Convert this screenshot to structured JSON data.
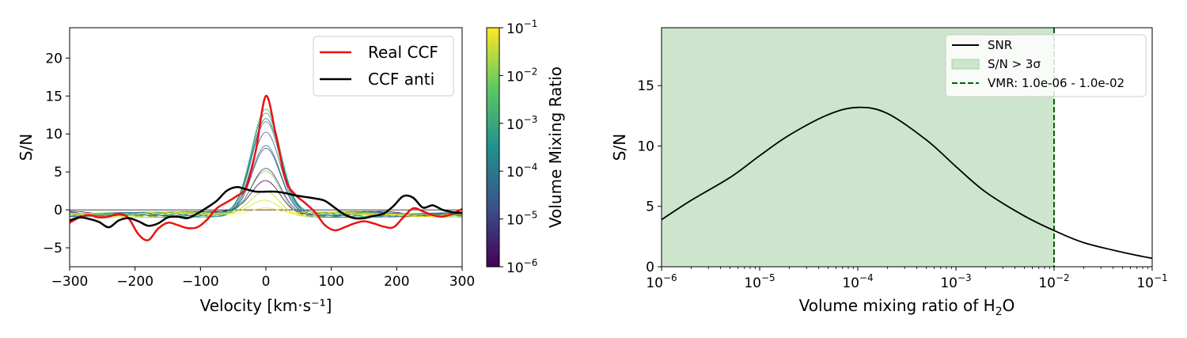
{
  "chart_data": [
    {
      "type": "line",
      "xlabel": "Velocity [km·s⁻¹]",
      "ylabel": "S/N",
      "xlim": [
        -300,
        300
      ],
      "ylim": [
        -7.5,
        24
      ],
      "x_ticks": [
        -300,
        -200,
        -100,
        0,
        100,
        200,
        300
      ],
      "x_tick_labels": [
        "−300",
        "−200",
        "−100",
        "0",
        "100",
        "200",
        "300"
      ],
      "y_ticks": [
        -5,
        0,
        5,
        10,
        15,
        20
      ],
      "y_tick_labels": [
        "−5",
        "0",
        "5",
        "10",
        "15",
        "20"
      ],
      "legend_position": "top-right",
      "zero_line": 0,
      "series": [
        {
          "name": "Real CCF",
          "color": "#ee1111",
          "x": [
            -300,
            -285,
            -270,
            -255,
            -240,
            -225,
            -210,
            -195,
            -180,
            -165,
            -150,
            -135,
            -120,
            -105,
            -90,
            -75,
            -60,
            -45,
            -30,
            -15,
            0,
            15,
            30,
            45,
            60,
            75,
            90,
            105,
            120,
            135,
            150,
            165,
            180,
            195,
            210,
            225,
            240,
            255,
            270,
            285,
            300
          ],
          "y": [
            -1.7,
            -1.0,
            -0.7,
            -1.0,
            -0.9,
            -0.5,
            -1.1,
            -3.2,
            -4.0,
            -2.5,
            -1.7,
            -2.0,
            -2.4,
            -2.3,
            -1.3,
            0.2,
            1.0,
            1.8,
            3.0,
            8.0,
            15.0,
            10.0,
            4.0,
            2.0,
            0.9,
            -0.3,
            -2.0,
            -2.7,
            -2.3,
            -1.8,
            -1.5,
            -1.8,
            -2.2,
            -2.3,
            -1.0,
            0.2,
            -0.2,
            -0.7,
            -0.9,
            -0.5,
            0.1
          ]
        },
        {
          "name": "CCF anti",
          "color": "#000000",
          "x": [
            -300,
            -285,
            -270,
            -255,
            -240,
            -225,
            -210,
            -195,
            -180,
            -165,
            -150,
            -135,
            -120,
            -105,
            -90,
            -75,
            -60,
            -45,
            -30,
            -15,
            0,
            15,
            30,
            45,
            60,
            75,
            90,
            105,
            120,
            135,
            150,
            165,
            180,
            195,
            210,
            225,
            240,
            255,
            270,
            285,
            300
          ],
          "y": [
            -1.4,
            -1.0,
            -1.2,
            -1.6,
            -2.3,
            -1.4,
            -1.1,
            -1.5,
            -2.1,
            -1.8,
            -1.0,
            -0.9,
            -1.1,
            -0.5,
            0.3,
            1.2,
            2.5,
            3.0,
            2.7,
            2.4,
            2.4,
            2.4,
            2.2,
            1.9,
            1.7,
            1.5,
            1.2,
            0.3,
            -0.6,
            -1.1,
            -1.1,
            -0.8,
            -0.5,
            0.5,
            1.8,
            1.6,
            0.3,
            0.6,
            0.0,
            -0.3,
            -0.4
          ]
        }
      ],
      "model_curves": [
        {
          "vmr": 1e-06,
          "peak": 4.0,
          "color": "#440154"
        },
        {
          "vmr": 2e-06,
          "peak": 5.7,
          "color": "#482878"
        },
        {
          "vmr": 5e-06,
          "peak": 8.3,
          "color": "#3e4989"
        },
        {
          "vmr": 1e-05,
          "peak": 10.3,
          "color": "#31688e"
        },
        {
          "vmr": 2e-05,
          "peak": 11.6,
          "color": "#26828e"
        },
        {
          "vmr": 5e-05,
          "peak": 12.7,
          "color": "#1f9e89"
        },
        {
          "vmr": 0.0001,
          "peak": 13.2,
          "color": "#35b779"
        },
        {
          "vmr": 0.0003,
          "peak": 11.9,
          "color": "#31688e"
        },
        {
          "vmr": 0.001,
          "peak": 8.3,
          "color": "#26828e"
        },
        {
          "vmr": 0.003,
          "peak": 5.0,
          "color": "#6ece58"
        },
        {
          "vmr": 0.01,
          "peak": 2.5,
          "color": "#b5de2b"
        },
        {
          "vmr": 0.03,
          "peak": 1.5,
          "color": "#dde318"
        },
        {
          "vmr": 0.1,
          "peak": 0.6,
          "color": "#fde725"
        }
      ],
      "colorbar": {
        "label": "Volume Mixing Ratio",
        "scale": "log",
        "range": [
          1e-06,
          0.1
        ],
        "tick_exponents": [
          -6,
          -5,
          -4,
          -3,
          -2,
          -1
        ],
        "gradient": [
          "#440154",
          "#3b528b",
          "#21918c",
          "#5ec962",
          "#fde725"
        ]
      }
    },
    {
      "type": "line",
      "xlabel_prefix": "Volume mixing ratio of H",
      "xlabel_sub": "2",
      "xlabel_suffix": "O",
      "ylabel": "S/N",
      "xscale": "log",
      "xlim": [
        1e-06,
        0.1
      ],
      "ylim": [
        0,
        19.8
      ],
      "x_tick_exponents": [
        -6,
        -5,
        -4,
        -3,
        -2,
        -1
      ],
      "y_ticks": [
        0,
        5,
        10,
        15
      ],
      "y_tick_labels": [
        "0",
        "5",
        "10",
        "15"
      ],
      "legend_position": "top-right",
      "series": [
        {
          "name": "SNR",
          "color": "#000000",
          "x": [
            1e-06,
            2e-06,
            5e-06,
            1e-05,
            2e-05,
            5e-05,
            0.0001,
            0.0002,
            0.0005,
            0.001,
            0.002,
            0.005,
            0.01,
            0.02,
            0.05,
            0.1
          ],
          "y": [
            3.9,
            5.5,
            7.4,
            9.2,
            10.9,
            12.6,
            13.2,
            12.7,
            10.5,
            8.3,
            6.2,
            4.2,
            3.0,
            2.0,
            1.2,
            0.7
          ]
        }
      ],
      "shaded_region": {
        "label": "S/N > 3σ",
        "x_range": [
          1e-06,
          0.01
        ],
        "color": "#cce5cc"
      },
      "vline": {
        "label": "VMR: 1.0e-06 - 1.0e-02",
        "x": 0.01,
        "color": "#006400"
      },
      "base_label": "10"
    }
  ]
}
